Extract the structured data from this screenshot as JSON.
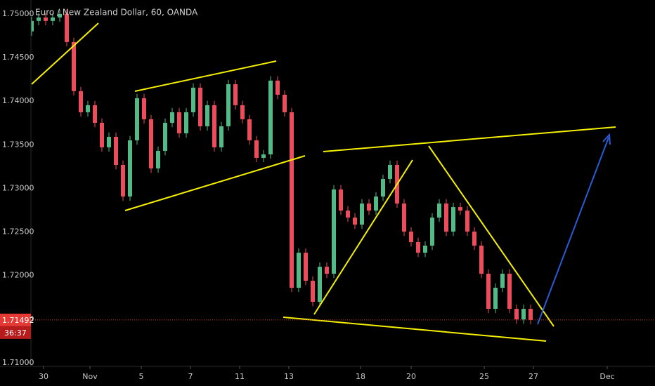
{
  "chart_data": {
    "type": "candlestick",
    "title": "Euro / New Zealand Dollar, 60, OANDA",
    "countdown": "36:37",
    "up_color": "#53b987",
    "down_color": "#eb4d5c",
    "price_line_color": "#e53935",
    "xlim": [
      -4.5,
      88.7
    ],
    "ylim": [
      1.7096,
      1.7516
    ],
    "yticks": [
      {
        "value": 1.75,
        "label": "1.75000"
      },
      {
        "value": 1.745,
        "label": "1.74500"
      },
      {
        "value": 1.74,
        "label": "1.74000"
      },
      {
        "value": 1.735,
        "label": "1.73500"
      },
      {
        "value": 1.73,
        "label": "1.73000"
      },
      {
        "value": 1.725,
        "label": "1.72500"
      },
      {
        "value": 1.72,
        "label": "1.72000"
      },
      {
        "value": 1.715,
        "label": "1.71500"
      },
      {
        "value": 1.71,
        "label": "1.71000"
      }
    ],
    "xticks": [
      {
        "value": 1.7,
        "label": "30"
      },
      {
        "value": 8.3,
        "label": "Nov"
      },
      {
        "value": 15.6,
        "label": "5"
      },
      {
        "value": 22.6,
        "label": "7"
      },
      {
        "value": 29.6,
        "label": "11"
      },
      {
        "value": 36.6,
        "label": "13"
      },
      {
        "value": 46.8,
        "label": "18"
      },
      {
        "value": 54,
        "label": "20"
      },
      {
        "value": 64.4,
        "label": "25"
      },
      {
        "value": 71.4,
        "label": "27"
      },
      {
        "value": 81.9,
        "label": "Dec"
      }
    ],
    "x": [
      0,
      1,
      2,
      3,
      4,
      5,
      6,
      7,
      8,
      9,
      10,
      11,
      12,
      13,
      14,
      15,
      16,
      17,
      18,
      19,
      20,
      21,
      22,
      23,
      24,
      25,
      26,
      27,
      28,
      29,
      30,
      31,
      32,
      33,
      34,
      35,
      36,
      37,
      38,
      39,
      40,
      41,
      42,
      43,
      44,
      45,
      46,
      47,
      48,
      49,
      50,
      51,
      52,
      53,
      54,
      55,
      56,
      57,
      58,
      59,
      60,
      61,
      62,
      63,
      64,
      65,
      66,
      67,
      68,
      69,
      70,
      71
    ],
    "open": [
      1.748,
      1.7492,
      1.7496,
      1.7492,
      1.7496,
      1.75,
      1.74678,
      1.74115,
      1.73873,
      1.73954,
      1.73752,
      1.73471,
      1.73591,
      1.73269,
      1.72907,
      1.73551,
      1.74034,
      1.73793,
      1.73229,
      1.7343,
      1.73752,
      1.73873,
      1.73632,
      1.73873,
      1.74155,
      1.73712,
      1.73954,
      1.73471,
      1.73712,
      1.74195,
      1.73954,
      1.73793,
      1.73551,
      1.7335,
      1.7339,
      1.74236,
      1.74074,
      1.73873,
      1.71861,
      1.72263,
      1.71941,
      1.717,
      1.72102,
      1.72022,
      1.72988,
      1.72746,
      1.72666,
      1.72585,
      1.72827,
      1.72746,
      1.72907,
      1.73108,
      1.73269,
      1.72827,
      1.72505,
      1.72384,
      1.72263,
      1.72344,
      1.72666,
      1.72827,
      1.72505,
      1.72786,
      1.72746,
      1.72505,
      1.72344,
      1.72022,
      1.71619,
      1.71861,
      1.72022,
      1.71619,
      1.71498,
      1.71619
    ],
    "high": [
      1.7497,
      1.7501,
      1.7501,
      1.7501,
      1.7505,
      1.7505,
      1.74728,
      1.74165,
      1.74004,
      1.74004,
      1.73802,
      1.73641,
      1.73641,
      1.73319,
      1.73601,
      1.74084,
      1.74084,
      1.73843,
      1.7348,
      1.73802,
      1.73923,
      1.73923,
      1.73923,
      1.74205,
      1.74205,
      1.74004,
      1.74004,
      1.73762,
      1.74245,
      1.74245,
      1.74004,
      1.73843,
      1.73601,
      1.7344,
      1.74286,
      1.74286,
      1.74124,
      1.73923,
      1.72313,
      1.72313,
      1.71991,
      1.72152,
      1.72152,
      1.73038,
      1.73038,
      1.72796,
      1.72716,
      1.72877,
      1.72877,
      1.72957,
      1.73158,
      1.73319,
      1.73319,
      1.72877,
      1.72555,
      1.72434,
      1.72394,
      1.72716,
      1.72877,
      1.72877,
      1.72836,
      1.72836,
      1.72796,
      1.72555,
      1.72394,
      1.72072,
      1.71911,
      1.72072,
      1.72072,
      1.71669,
      1.71669,
      1.71669
    ],
    "low": [
      1.7475,
      1.7487,
      1.7487,
      1.7487,
      1.7491,
      1.74628,
      1.74065,
      1.73823,
      1.73823,
      1.73702,
      1.73421,
      1.73421,
      1.73219,
      1.72857,
      1.72857,
      1.73501,
      1.73743,
      1.73179,
      1.73179,
      1.7338,
      1.73702,
      1.73582,
      1.73582,
      1.73823,
      1.73662,
      1.73662,
      1.73421,
      1.73421,
      1.73662,
      1.73904,
      1.73743,
      1.73501,
      1.733,
      1.733,
      1.7334,
      1.74024,
      1.73823,
      1.71811,
      1.71811,
      1.71891,
      1.7165,
      1.7165,
      1.71972,
      1.71972,
      1.72696,
      1.72616,
      1.72535,
      1.72535,
      1.72696,
      1.72696,
      1.72857,
      1.73058,
      1.72777,
      1.72455,
      1.72334,
      1.72213,
      1.72213,
      1.72294,
      1.72616,
      1.72455,
      1.72455,
      1.72696,
      1.72455,
      1.72294,
      1.71972,
      1.71569,
      1.71569,
      1.71811,
      1.71569,
      1.71448,
      1.71448,
      1.71442
    ],
    "close": [
      1.7492,
      1.7496,
      1.7492,
      1.7496,
      1.75,
      1.74678,
      1.74115,
      1.73873,
      1.73954,
      1.73752,
      1.73471,
      1.73591,
      1.73269,
      1.72907,
      1.73551,
      1.74034,
      1.73793,
      1.73229,
      1.7343,
      1.73752,
      1.73873,
      1.73632,
      1.73873,
      1.74155,
      1.73712,
      1.73954,
      1.73471,
      1.73712,
      1.74195,
      1.73954,
      1.73793,
      1.73551,
      1.7335,
      1.7339,
      1.74236,
      1.74074,
      1.73873,
      1.71861,
      1.72263,
      1.71941,
      1.717,
      1.72102,
      1.72022,
      1.72988,
      1.72746,
      1.72666,
      1.72585,
      1.72827,
      1.72746,
      1.72907,
      1.73108,
      1.73269,
      1.72827,
      1.72505,
      1.72384,
      1.72263,
      1.72344,
      1.72666,
      1.72827,
      1.72505,
      1.72786,
      1.72746,
      1.72505,
      1.72344,
      1.72022,
      1.71619,
      1.71861,
      1.72022,
      1.71619,
      1.71498,
      1.71619,
      1.71492
    ]
  }
}
